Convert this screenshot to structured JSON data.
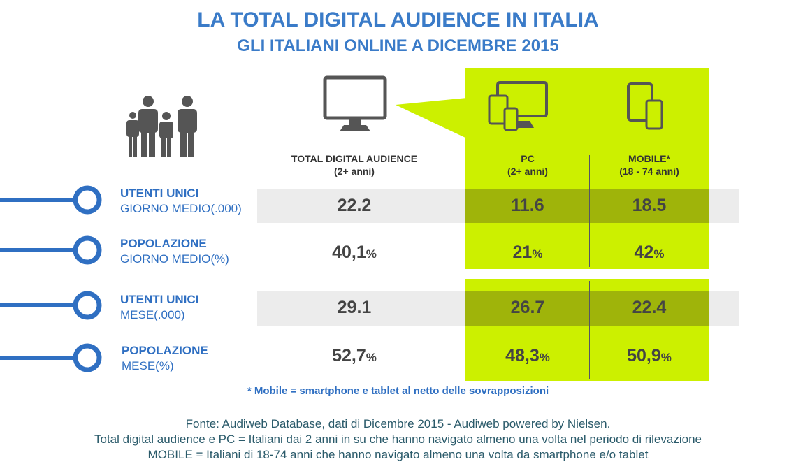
{
  "title": "LA TOTAL DIGITAL AUDIENCE IN ITALIA",
  "subtitle": "GLI ITALIANI ONLINE A DICEMBRE 2015",
  "icons": {
    "people": "family-icon",
    "monitor": "monitor-icon",
    "devices": "pc-devices-icon",
    "mobile": "mobile-devices-icon"
  },
  "colors": {
    "accent": "#ccf000",
    "band": "#ececec",
    "band_dark": "#9fb40a",
    "blue": "#2f6fc2"
  },
  "chart_data": {
    "type": "table",
    "columns": [
      {
        "label": "TOTAL DIGITAL AUDIENCE",
        "sub": "(2+ anni)"
      },
      {
        "label": "PC",
        "sub": "(2+ anni)"
      },
      {
        "label": "MOBILE*",
        "sub": "(18 - 74 anni)"
      }
    ],
    "rows": [
      {
        "label_bold": "UTENTI UNICI",
        "label_sub": "GIORNO  MEDIO(.000)",
        "values": [
          "22.2",
          "11.6",
          "18.5"
        ],
        "suffix": ""
      },
      {
        "label_bold": "POPOLAZIONE",
        "label_sub": "GIORNO  MEDIO(%)",
        "values": [
          "40,1",
          "21",
          "42"
        ],
        "suffix": "%"
      },
      {
        "label_bold": "UTENTI UNICI",
        "label_sub": "MESE(.000)",
        "values": [
          "29.1",
          "26.7",
          "22.4"
        ],
        "suffix": ""
      },
      {
        "label_bold": "POPOLAZIONE",
        "label_sub": "MESE(%)",
        "values": [
          "52,7",
          "48,3",
          "50,9"
        ],
        "suffix": "%"
      }
    ]
  },
  "footnote": "* Mobile  = smartphone  e  tablet  al netto delle  sovrapposizioni",
  "source": {
    "line1": "Fonte: Audiweb Database, dati di Dicembre 2015 - Audiweb powered by Nielsen.",
    "line2": "Total digital audience  e PC = Italiani dai 2 anni in su che hanno  navigato  almeno  una volta nel periodo di rilevazione",
    "line3": "MOBILE = Italiani  di 18-74 anni  che hanno  navigato  almeno  una volta da smartphone  e/o tablet"
  }
}
